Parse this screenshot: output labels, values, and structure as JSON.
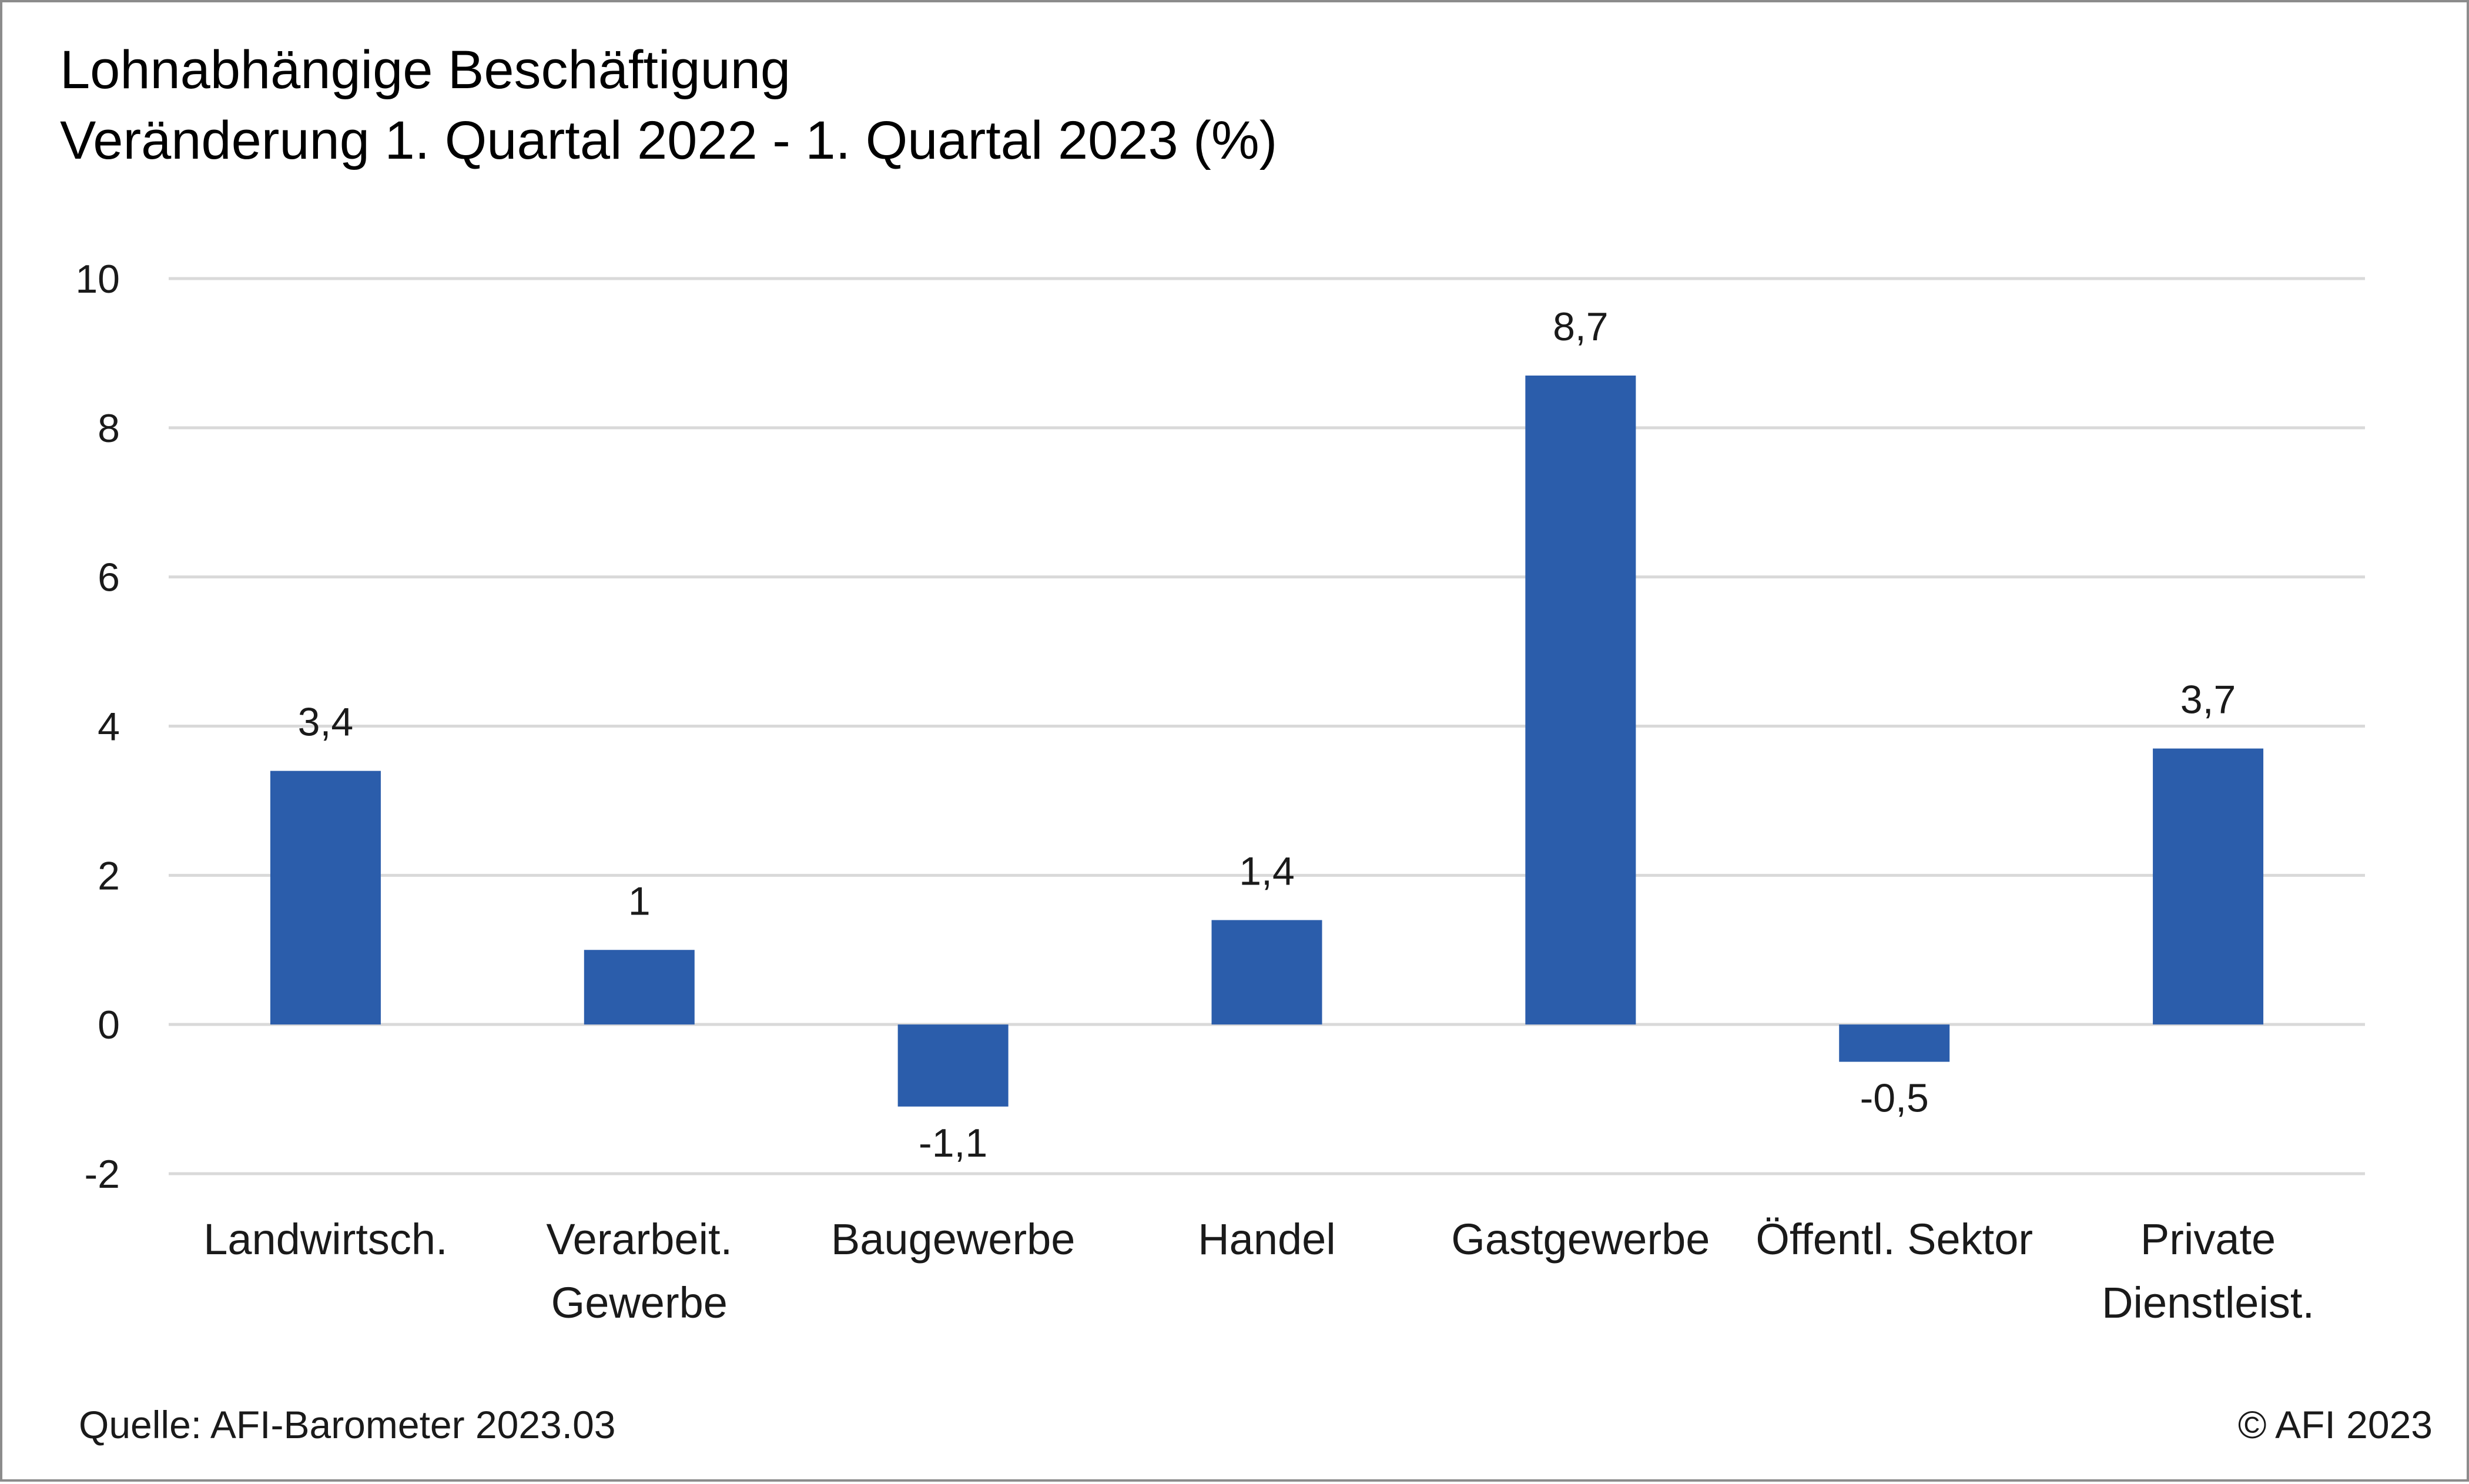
{
  "title": {
    "line1": "Lohnabhängige Beschäftigung",
    "line2": "Veränderung 1. Quartal 2022 - 1. Quartal 2023 (%)"
  },
  "footer": {
    "source": "Quelle: AFI-Barometer 2023.03",
    "copyright": "© AFI 2023"
  },
  "colors": {
    "bar": "#2B5DAB",
    "grid": "#d9d9d9",
    "text": "#1a1a1a"
  },
  "chart_data": {
    "type": "bar",
    "title": "Lohnabhängige Beschäftigung Veränderung 1. Quartal 2022 - 1. Quartal 2023 (%)",
    "categories": [
      [
        "Landwirtsch."
      ],
      [
        "Verarbeit.",
        "Gewerbe"
      ],
      [
        "Baugewerbe"
      ],
      [
        "Handel"
      ],
      [
        "Gastgewerbe"
      ],
      [
        "Öffentl. Sektor"
      ],
      [
        "Private",
        "Dienstleist."
      ]
    ],
    "values": [
      3.4,
      1,
      -1.1,
      1.4,
      8.7,
      -0.5,
      3.7
    ],
    "data_labels": [
      "3,4",
      "1",
      "-1,1",
      "1,4",
      "8,7",
      "-0,5",
      "3,7"
    ],
    "ylim": [
      -2,
      10
    ],
    "yticks": [
      10,
      8,
      6,
      4,
      2,
      0,
      -2
    ],
    "ytick_labels": [
      "10",
      "8",
      "6",
      "4",
      "2",
      "0",
      "-2"
    ],
    "xlabel": "",
    "ylabel": "",
    "grid": true,
    "legend": "none"
  }
}
